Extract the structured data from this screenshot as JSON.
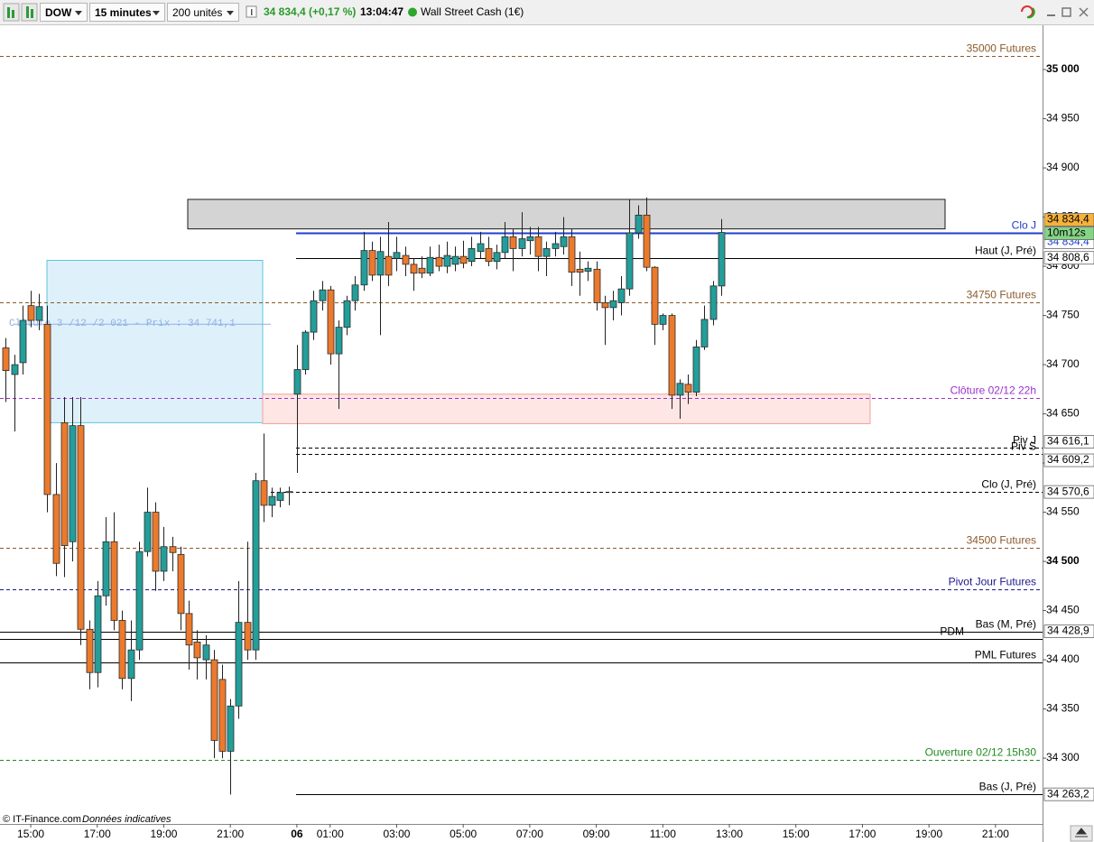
{
  "toolbar": {
    "symbol": "DOW",
    "period": "15 minutes",
    "units": "200 unités",
    "quote": "34 834,4 (+0,17 %)",
    "time": "13:04:47",
    "instrument": "Wall Street Cash (1€)"
  },
  "footer": {
    "source": "© IT-Finance.com",
    "note": "Données indicatives"
  },
  "chart_data": {
    "type": "candlestick",
    "colors": {
      "up": "#239e9a",
      "down": "#ec7a2c",
      "outline": "#2b2b2b"
    },
    "ylim": [
      34233.1,
      35045
    ],
    "yticks": [
      {
        "value": 34300,
        "label": "34 300"
      },
      {
        "value": 34350,
        "label": "34 350"
      },
      {
        "value": 34400,
        "label": "34 400"
      },
      {
        "value": 34450,
        "label": "34 450"
      },
      {
        "value": 34500,
        "label": "34 500"
      },
      {
        "value": 34550,
        "label": "34 550"
      },
      {
        "value": 34600,
        "label": "34 600"
      },
      {
        "value": 34650,
        "label": "34 650"
      },
      {
        "value": 34700,
        "label": "34 700"
      },
      {
        "value": 34750,
        "label": "34 750"
      },
      {
        "value": 34800,
        "label": "34 800"
      },
      {
        "value": 34850,
        "label": "34 850"
      },
      {
        "value": 34900,
        "label": "34 900"
      },
      {
        "value": 34950,
        "label": "34 950"
      },
      {
        "value": 35000,
        "label": "35 000"
      }
    ],
    "categories": [
      null,
      null,
      null,
      "15:00",
      null,
      null,
      null,
      null,
      null,
      null,
      null,
      "17:00",
      null,
      null,
      null,
      null,
      null,
      null,
      null,
      "19:00",
      null,
      null,
      null,
      null,
      null,
      null,
      null,
      "21:00",
      null,
      null,
      null,
      null,
      null,
      null,
      null,
      "06",
      null,
      null,
      null,
      "01:00",
      null,
      null,
      null,
      null,
      null,
      null,
      null,
      "03:00",
      null,
      null,
      null,
      null,
      null,
      null,
      null,
      "05:00",
      null,
      null,
      null,
      null,
      null,
      null,
      null,
      "07:00",
      null,
      null,
      null,
      null,
      null,
      null,
      null,
      "09:00",
      null,
      null,
      null,
      null,
      null,
      null,
      null,
      "11:00",
      null,
      null,
      null,
      null,
      null,
      null,
      null,
      "13:00",
      null,
      null,
      null,
      null,
      null,
      null,
      null,
      "15:00",
      null,
      null,
      null,
      null,
      null,
      null,
      null,
      "17:00",
      null,
      null,
      null,
      null,
      null,
      null,
      null,
      "19:00",
      null,
      null,
      null,
      null,
      null,
      null,
      null,
      "21:00",
      null,
      null,
      null,
      null,
      null
    ],
    "open": [
      34717,
      34690,
      34702,
      34760,
      34745,
      34741,
      34568,
      34641,
      34520,
      34638,
      34431,
      34387,
      34465,
      34520,
      34440,
      34381,
      34410,
      34510,
      34550,
      34490,
      34515,
      34507,
      34447,
      34418,
      34400,
      34400,
      34380,
      34307,
      34353,
      34438,
      34410,
      34582,
      34557,
      34562,
      34570,
      34670,
      34695,
      34733,
      34765,
      34776,
      34711,
      34738,
      34765,
      34781,
      34816,
      34791,
      34810,
      34808,
      34811,
      34802,
      34798,
      34793,
      34809,
      34800,
      34802,
      34810,
      34805,
      34815,
      34818,
      34805,
      34814,
      34830,
      34818,
      34826,
      34830,
      34810,
      34818,
      34820,
      34830,
      34797,
      34795,
      34797,
      34763,
      34758,
      34763,
      34777,
      34834,
      34852,
      34799,
      34741,
      34750,
      34669,
      34680,
      34672,
      34718,
      34746,
      34780,
      null,
      null,
      null,
      null,
      null,
      null,
      null,
      null,
      null,
      null,
      null,
      null,
      null,
      null,
      null,
      null,
      null,
      null,
      null,
      null,
      null,
      null,
      null,
      null,
      null,
      null,
      null,
      null,
      null,
      null,
      null,
      null,
      null,
      null,
      null,
      null,
      null,
      null
    ],
    "high": [
      34727,
      34710,
      34760,
      34775,
      34772,
      34760,
      34600,
      34667,
      34667,
      34667,
      34440,
      34480,
      34545,
      34550,
      34450,
      34440,
      34520,
      34575,
      34560,
      34535,
      34525,
      34515,
      34460,
      34430,
      34425,
      34410,
      34395,
      34360,
      34480,
      34520,
      34590,
      34630,
      34575,
      34575,
      34576,
      34720,
      34735,
      34775,
      34785,
      34780,
      34745,
      34770,
      34790,
      34835,
      34825,
      34830,
      34845,
      34830,
      34820,
      34808,
      34810,
      34820,
      34822,
      34825,
      34820,
      34826,
      34830,
      34835,
      34830,
      34822,
      34845,
      34838,
      34855,
      34840,
      34840,
      34825,
      34835,
      34850,
      34838,
      34815,
      34805,
      34805,
      34770,
      34775,
      34790,
      34868,
      34862,
      34870,
      34800,
      34752,
      34752,
      34685,
      34690,
      34725,
      34760,
      34785,
      34848,
      null,
      null,
      null,
      null,
      null,
      null,
      null,
      null,
      null,
      null,
      null,
      null,
      null,
      null,
      null,
      null,
      null,
      null,
      null,
      null,
      null,
      null,
      null,
      null,
      null,
      null,
      null,
      null,
      null,
      null,
      null,
      null,
      null,
      null,
      null,
      null,
      null,
      null
    ],
    "low": [
      34662,
      34632,
      34690,
      34738,
      34735,
      34550,
      34485,
      34484,
      34500,
      34415,
      34370,
      34372,
      34455,
      34430,
      34370,
      34358,
      34400,
      34505,
      34470,
      34480,
      34490,
      34430,
      34390,
      34380,
      34380,
      34300,
      34300,
      34263,
      34340,
      34400,
      34400,
      34540,
      34545,
      34555,
      34557,
      34590,
      34690,
      34725,
      34755,
      34700,
      34655,
      34730,
      34755,
      34775,
      34785,
      34730,
      34780,
      34795,
      34790,
      34775,
      34788,
      34790,
      34795,
      34793,
      34795,
      34798,
      34800,
      34808,
      34800,
      34797,
      34808,
      34795,
      34810,
      34812,
      34795,
      34790,
      34810,
      34812,
      34780,
      34770,
      34785,
      34755,
      34720,
      34745,
      34750,
      34770,
      34828,
      34795,
      34720,
      34735,
      34655,
      34645,
      34660,
      34668,
      34715,
      34740,
      34770,
      null,
      null,
      null,
      null,
      null,
      null,
      null,
      null,
      null,
      null,
      null,
      null,
      null,
      null,
      null,
      null,
      null,
      null,
      null,
      null,
      null,
      null,
      null,
      null,
      null,
      null,
      null,
      null,
      null,
      null,
      null,
      null,
      null,
      null,
      null,
      null,
      null,
      null
    ],
    "close": [
      34694,
      34700,
      34745,
      34745,
      34759,
      34568,
      34498,
      34516,
      34638,
      34431,
      34387,
      34465,
      34520,
      34440,
      34381,
      34410,
      34510,
      34550,
      34490,
      34515,
      34509,
      34447,
      34415,
      34402,
      34415,
      34318,
      34307,
      34353,
      34438,
      34410,
      34582,
      34557,
      34566,
      34570,
      34571,
      34695,
      34733,
      34765,
      34776,
      34711,
      34738,
      34765,
      34781,
      34816,
      34791,
      34815,
      34791,
      34814,
      34802,
      34793,
      34793,
      34809,
      34800,
      34811,
      34810,
      34803,
      34818,
      34823,
      34805,
      34814,
      34830,
      34818,
      34828,
      34830,
      34810,
      34818,
      34823,
      34830,
      34794,
      34794,
      34798,
      34763,
      34758,
      34765,
      34777,
      34834,
      34852,
      34799,
      34741,
      34750,
      34669,
      34681,
      34672,
      34718,
      34746,
      34780,
      34834.4,
      null,
      null,
      null,
      null,
      null,
      null,
      null,
      null,
      null,
      null,
      null,
      null,
      null,
      null,
      null,
      null,
      null,
      null,
      null,
      null,
      null,
      null,
      null,
      null,
      null,
      null,
      null,
      null,
      null,
      null,
      null,
      null,
      null,
      null,
      null,
      null,
      null,
      null
    ],
    "zones": [
      {
        "from": 34838,
        "to": 34868,
        "color": "#d4d4d4",
        "border": "#1a1a1a"
      },
      {
        "from": 34641,
        "to": 34806,
        "color": "#def1fa",
        "border": "#5cc4dc"
      },
      {
        "from": 34640,
        "to": 34670,
        "color": "#fde6e3",
        "border": "#f2a29a"
      }
    ],
    "annotation": {
      "text": "Clôture 3 /12 /2 021 - Prix : 34 741,1",
      "value": 34741.1,
      "color": "#8fb0e6"
    },
    "levels": [
      {
        "label": "35000 Futures",
        "value": 35014,
        "color": "#8b5a2b",
        "dash": true
      },
      {
        "label": "Clo J",
        "value": 34834.4,
        "value_label": "34 834,4",
        "color": "#1f3fcc",
        "dash": false
      },
      {
        "label": "Haut (J, Pré)",
        "value": 34808.6,
        "value_label": "34 808,6",
        "color": "#000000",
        "dash": false
      },
      {
        "label": "34750 Futures",
        "value": 34763,
        "color": "#8b5a2b",
        "dash": true
      },
      {
        "label": "Clôture 02/12 22h",
        "value": 34666,
        "color": "#9933cc",
        "dash": true
      },
      {
        "label": "Piv J",
        "value": 34616.1,
        "value_label": "34 616,1",
        "color": "#000000",
        "dash": true
      },
      {
        "label": "Piv S",
        "value": 34609.2,
        "value_label": "34 609,2",
        "color": "#000000",
        "dash": true
      },
      {
        "label": "Clo (J, Pré)",
        "value": 34570.6,
        "value_label": "34 570,6",
        "color": "#000000",
        "dash": true
      },
      {
        "label": "34500 Futures",
        "value": 34514,
        "color": "#8b5a2b",
        "dash": true
      },
      {
        "label": "Pivot Jour Futures",
        "value": 34472,
        "color": "#1a1a8c",
        "dash": true
      },
      {
        "label": "Bas (M, Pré)",
        "value": 34428.9,
        "value_label": "34 428,9",
        "color": "#000000",
        "dash": false
      },
      {
        "label": "PDM",
        "value": 34421,
        "color": "#000000",
        "dash": false
      },
      {
        "label": "PML Futures",
        "value": 34397,
        "color": "#000000",
        "dash": false
      },
      {
        "label": "Ouverture 02/12 15h30",
        "value": 34298,
        "color": "#228b22",
        "dash": true
      },
      {
        "label": "Bas (J, Pré)",
        "value": 34263.2,
        "value_label": "34 263,2",
        "color": "#000000",
        "dash": false
      }
    ],
    "current": {
      "value": 34834.4,
      "label": "34 834,4",
      "timer": "10m12s",
      "color": "#f6b23a",
      "timer_color": "#86d486"
    }
  }
}
